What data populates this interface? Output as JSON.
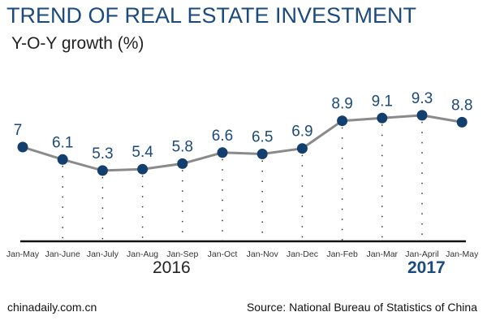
{
  "chart_data": {
    "type": "line",
    "title": "TREND OF REAL ESTATE INVESTMENT",
    "ylabel": "Y-O-Y growth (%)",
    "xlabel": "",
    "categories": [
      "Jan-May",
      "Jan-June",
      "Jan-July",
      "Jan-Aug",
      "Jan-Sep",
      "Jan-Oct",
      "Jan-Nov",
      "Jan-Dec",
      "Jan-Feb",
      "Jan-Mar",
      "Jan-April",
      "Jan-May"
    ],
    "values": [
      7,
      6.1,
      5.3,
      5.4,
      5.8,
      6.6,
      6.5,
      6.9,
      8.9,
      9.1,
      9.3,
      8.8
    ],
    "data_labels": [
      "7",
      "6.1",
      "5.3",
      "5.4",
      "5.8",
      "6.6",
      "6.5",
      "6.9",
      "8.9",
      "9.1",
      "9.3",
      "8.8"
    ],
    "year_labels": {
      "y2016": "2016",
      "y2017": "2017"
    },
    "grid": false,
    "colors": {
      "line": "#8a8a8a",
      "marker": "#123f6e",
      "title": "#1b4a7c",
      "axis": "#111111"
    }
  },
  "footer": {
    "credit": "chinadaily.com.cn",
    "source": "Source: National Bureau of Statistics of China"
  }
}
